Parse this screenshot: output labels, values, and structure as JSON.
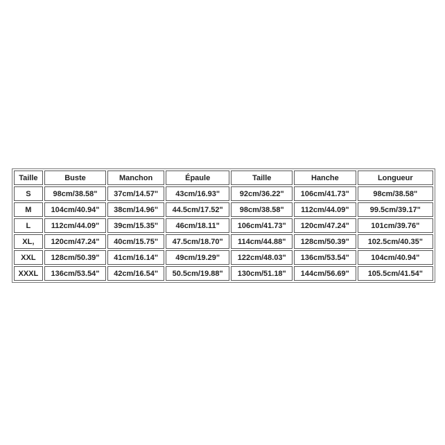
{
  "table": {
    "headers": [
      "Taille",
      "Buste",
      "Manchon",
      "Épaule",
      "Taille",
      "Hanche",
      "Longueur"
    ],
    "rows": [
      [
        "S",
        "98cm/38.58\"",
        "37cm/14.57\"",
        "43cm/16.93\"",
        "92cm/36.22\"",
        "106cm/41.73\"",
        "98cm/38.58\""
      ],
      [
        "M",
        "104cm/40.94\"",
        "38cm/14.96\"",
        "44.5cm/17.52\"",
        "98cm/38.58\"",
        "112cm/44.09\"",
        "99.5cm/39.17\""
      ],
      [
        "L",
        "112cm/44.09\"",
        "39cm/15.35\"",
        "46cm/18.11\"",
        "106cm/41.73\"",
        "120cm/47.24\"",
        "101cm/39.76\""
      ],
      [
        "XL,",
        "120cm/47.24\"",
        "40cm/15.75\"",
        "47.5cm/18.70\"",
        "114cm/44.88\"",
        "128cm/50.39\"",
        "102.5cm/40.35\""
      ],
      [
        "XXL",
        "128cm/50.39\"",
        "41cm/16.14\"",
        "49cm/19.29\"",
        "122cm/48.03\"",
        "136cm/53.54\"",
        "104cm/40.94\""
      ],
      [
        "XXXL",
        "136cm/53.54\"",
        "42cm/16.54\"",
        "50.5cm/19.88\"",
        "130cm/51.18\"",
        "144cm/56.69\"",
        "105.5cm/41.54\""
      ]
    ]
  }
}
